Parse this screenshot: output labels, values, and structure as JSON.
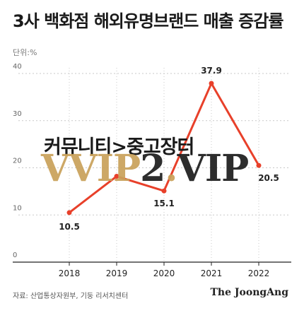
{
  "title": "3사 백화점 해외유명브랜드 매출 증감률",
  "unit": "단위:%",
  "source": "자료: 산업통상자원부, 기둥 리서치센터",
  "publisher": "The JoongAng",
  "overlay_text": "커뮤니티>중고장터",
  "watermark_text": "VVIP2.VIP",
  "colors": {
    "line": "#e8402a",
    "marker": "#e8402a",
    "grid": "#c8c8c8",
    "axis": "#222222",
    "text": "#333333"
  },
  "chart_data": {
    "type": "line",
    "x": [
      "2018",
      "2019",
      "2020",
      "2021",
      "2022"
    ],
    "series": [
      {
        "values": [
          10.5,
          18.2,
          15.1,
          37.9,
          20.5
        ]
      }
    ],
    "data_labels": [
      "10.5",
      "",
      "15.1",
      "37.9",
      "20.5"
    ],
    "y_ticks": [
      "0",
      "10",
      "20",
      "30",
      "40"
    ],
    "ylim": [
      0,
      40
    ],
    "grid": true
  }
}
